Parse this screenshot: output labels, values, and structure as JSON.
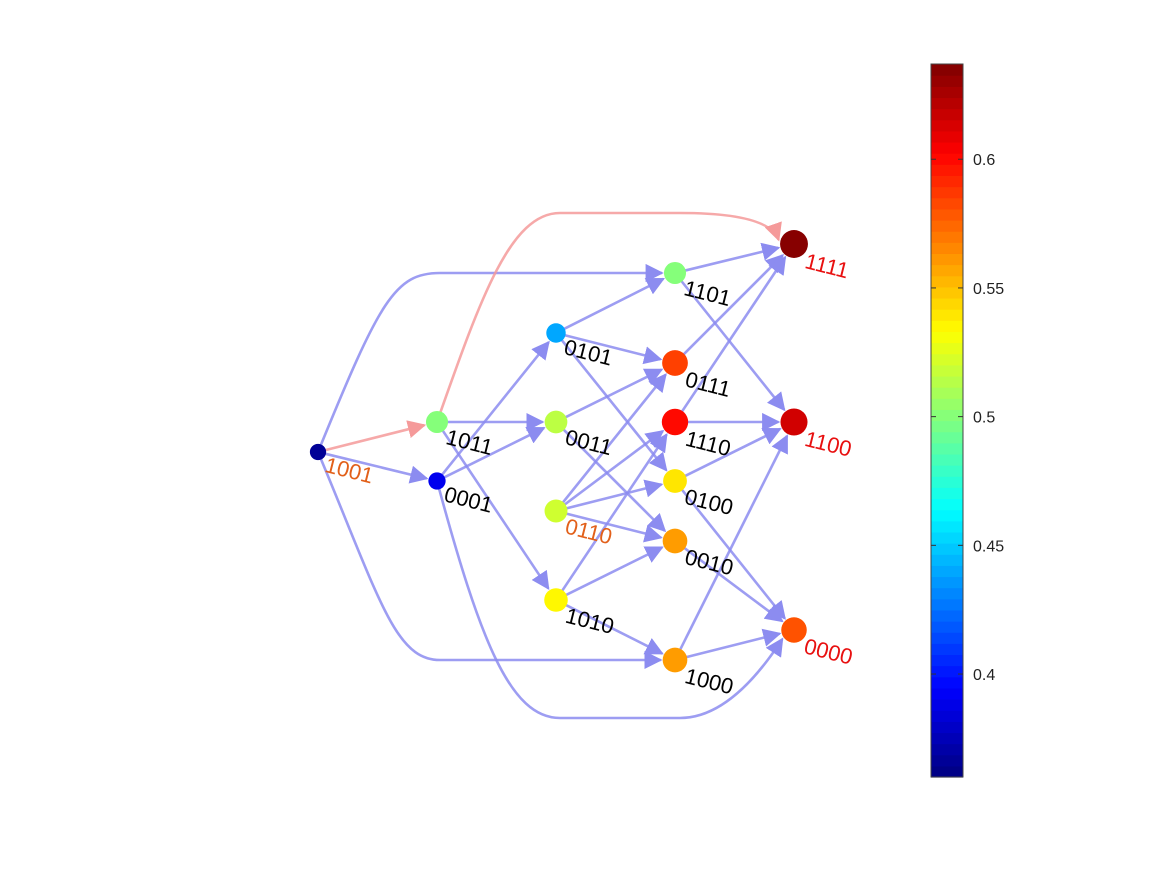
{
  "colors": {
    "edge_default": "#8c8cf0",
    "edge_highlight": "#f59a9a",
    "label_default": "#000000",
    "label_start": "#e2601a",
    "label_sink": "#e81010",
    "colorbar_border": "#444444"
  },
  "nodes": [
    {
      "id": "1001",
      "label": "1001",
      "value": 0.366,
      "label_color_role": "start"
    },
    {
      "id": "1011",
      "label": "1011",
      "value": 0.5,
      "label_color_role": "default"
    },
    {
      "id": "0001",
      "label": "0001",
      "value": 0.39,
      "label_color_role": "default"
    },
    {
      "id": "0101",
      "label": "0101",
      "value": 0.44,
      "label_color_role": "default"
    },
    {
      "id": "0011",
      "label": "0011",
      "value": 0.515,
      "label_color_role": "default"
    },
    {
      "id": "0110",
      "label": "0110",
      "value": 0.52,
      "label_color_role": "start"
    },
    {
      "id": "1010",
      "label": "1010",
      "value": 0.535,
      "label_color_role": "default"
    },
    {
      "id": "1101",
      "label": "1101",
      "value": 0.5,
      "label_color_role": "default"
    },
    {
      "id": "0111",
      "label": "0111",
      "value": 0.585,
      "label_color_role": "default"
    },
    {
      "id": "1110",
      "label": "1110",
      "value": 0.6,
      "label_color_role": "default"
    },
    {
      "id": "0100",
      "label": "0100",
      "value": 0.54,
      "label_color_role": "default"
    },
    {
      "id": "0010",
      "label": "0010",
      "value": 0.56,
      "label_color_role": "default"
    },
    {
      "id": "1000",
      "label": "1000",
      "value": 0.56,
      "label_color_role": "default"
    },
    {
      "id": "1111",
      "label": "1111",
      "value": 0.635,
      "label_color_role": "sink"
    },
    {
      "id": "1100",
      "label": "1100",
      "value": 0.615,
      "label_color_role": "sink"
    },
    {
      "id": "0000",
      "label": "0000",
      "value": 0.58,
      "label_color_role": "sink"
    }
  ],
  "edges": [
    {
      "from": "1001",
      "to": "1011",
      "highlight": true
    },
    {
      "from": "1001",
      "to": "0001",
      "highlight": false
    },
    {
      "from": "1001",
      "to": "1101",
      "highlight": false
    },
    {
      "from": "1001",
      "to": "1000",
      "highlight": false
    },
    {
      "from": "1011",
      "to": "1111",
      "highlight": true
    },
    {
      "from": "1011",
      "to": "0011",
      "highlight": false
    },
    {
      "from": "1011",
      "to": "1010",
      "highlight": false
    },
    {
      "from": "0001",
      "to": "0101",
      "highlight": false
    },
    {
      "from": "0001",
      "to": "0011",
      "highlight": false
    },
    {
      "from": "0001",
      "to": "0000",
      "highlight": false
    },
    {
      "from": "0101",
      "to": "1101",
      "highlight": false
    },
    {
      "from": "0101",
      "to": "0111",
      "highlight": false
    },
    {
      "from": "0101",
      "to": "0100",
      "highlight": false
    },
    {
      "from": "0011",
      "to": "0111",
      "highlight": false
    },
    {
      "from": "0011",
      "to": "0010",
      "highlight": false
    },
    {
      "from": "0110",
      "to": "0111",
      "highlight": false
    },
    {
      "from": "0110",
      "to": "1110",
      "highlight": false
    },
    {
      "from": "0110",
      "to": "0100",
      "highlight": false
    },
    {
      "from": "0110",
      "to": "0010",
      "highlight": false
    },
    {
      "from": "1010",
      "to": "1110",
      "highlight": false
    },
    {
      "from": "1010",
      "to": "0010",
      "highlight": false
    },
    {
      "from": "1010",
      "to": "1000",
      "highlight": false
    },
    {
      "from": "1101",
      "to": "1111",
      "highlight": false
    },
    {
      "from": "1101",
      "to": "1100",
      "highlight": false
    },
    {
      "from": "0111",
      "to": "1111",
      "highlight": false
    },
    {
      "from": "1110",
      "to": "1111",
      "highlight": false
    },
    {
      "from": "1110",
      "to": "1100",
      "highlight": false
    },
    {
      "from": "0100",
      "to": "1100",
      "highlight": false
    },
    {
      "from": "0100",
      "to": "0000",
      "highlight": false
    },
    {
      "from": "0010",
      "to": "0000",
      "highlight": false
    },
    {
      "from": "1000",
      "to": "1100",
      "highlight": false
    },
    {
      "from": "1000",
      "to": "0000",
      "highlight": false
    }
  ],
  "colorbar": {
    "min": 0.36,
    "max": 0.637,
    "colormap": "jet",
    "ticks": [
      {
        "value": 0.4,
        "label": "0.4"
      },
      {
        "value": 0.45,
        "label": "0.45"
      },
      {
        "value": 0.5,
        "label": "0.5"
      },
      {
        "value": 0.55,
        "label": "0.55"
      },
      {
        "value": 0.6,
        "label": "0.6"
      }
    ]
  }
}
